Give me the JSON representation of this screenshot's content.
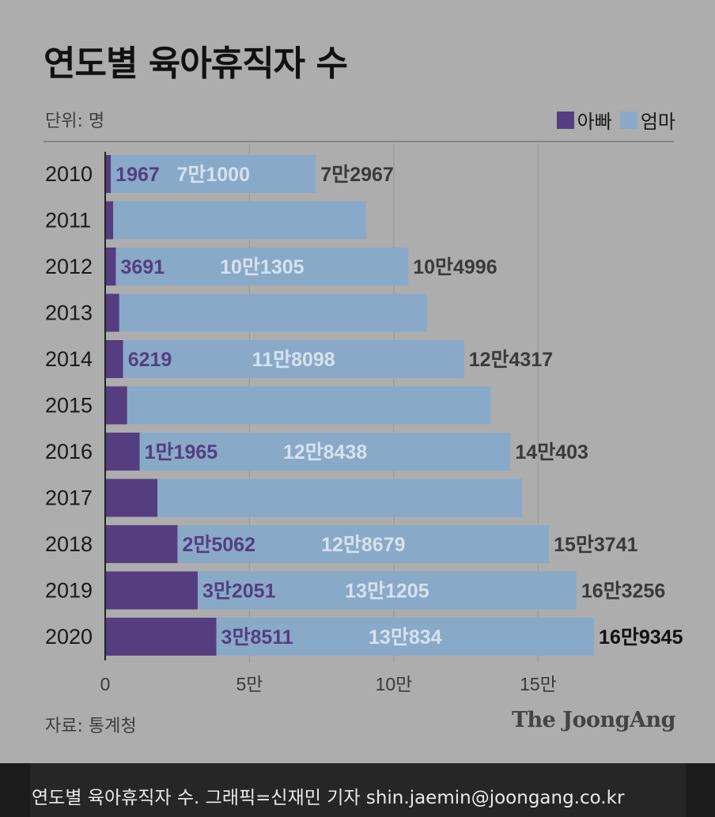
{
  "title": "연도별 육아휴직자 수",
  "unit": "단위: 명",
  "source": "자료: 통계청",
  "brand": "The JoongAng",
  "caption": "연도별 육아휴직자 수. 그래픽=신재민 기자 shin.jaemin@joongang.co.kr",
  "colors": {
    "father": "#553e80",
    "mother": "#89a9c8",
    "background": "#adadad"
  },
  "chart_data": {
    "type": "bar",
    "orientation": "horizontal",
    "stacked": true,
    "categories": [
      "2010",
      "2011",
      "2012",
      "2013",
      "2014",
      "2015",
      "2016",
      "2017",
      "2018",
      "2019",
      "2020"
    ],
    "series": [
      {
        "name": "아빠",
        "values": [
          1967,
          2790,
          3691,
          4872,
          6219,
          7616,
          11965,
          18085,
          25062,
          32051,
          38511
        ],
        "labels": [
          "1967",
          "",
          "3691",
          "",
          "6219",
          "",
          "1만1965",
          "",
          "2만5062",
          "3만2051",
          "3만8511"
        ]
      },
      {
        "name": "엄마",
        "values": [
          71000,
          87605,
          101305,
          106680,
          118098,
          125904,
          128438,
          126385,
          128679,
          131205,
          130834
        ],
        "labels": [
          "7만1000",
          "",
          "10만1305",
          "",
          "11만8098",
          "",
          "12만8438",
          "",
          "12만8679",
          "13만1205",
          "13만834"
        ]
      }
    ],
    "totals": [
      72967,
      90395,
      104996,
      111552,
      124317,
      133520,
      140403,
      144470,
      153741,
      163256,
      169345
    ],
    "total_labels": [
      "7만2967",
      "",
      "10만4996",
      "",
      "12만4317",
      "",
      "14만403",
      "",
      "15만3741",
      "16만3256",
      "16만9345"
    ],
    "xlim": [
      0,
      200000
    ],
    "xticks": [
      0,
      50000,
      100000,
      150000
    ],
    "xtick_labels": [
      "0",
      "5만",
      "10만",
      "15만"
    ],
    "legend": [
      "아빠",
      "엄마"
    ],
    "legend_position": "top-right",
    "grid": "vertical"
  }
}
